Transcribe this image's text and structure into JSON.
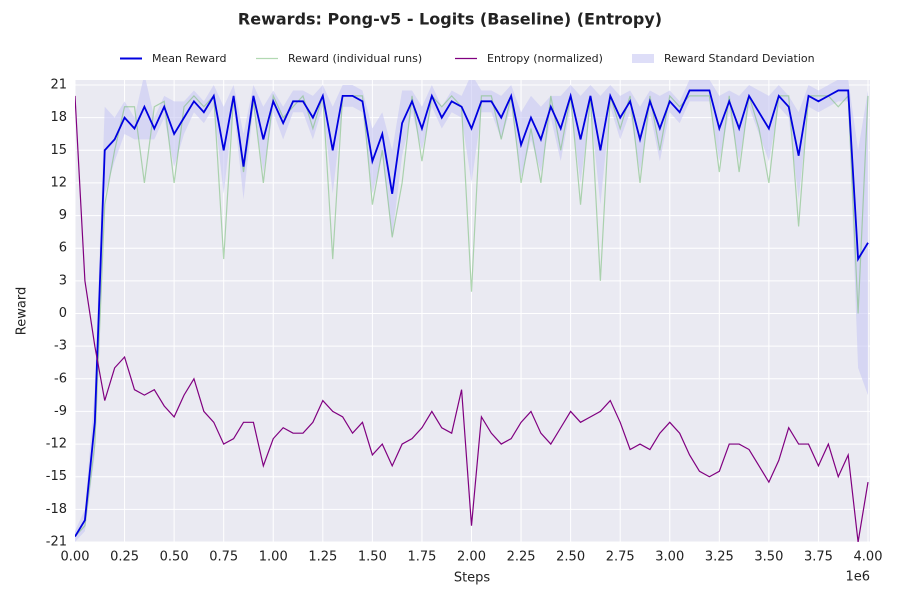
{
  "chart_data": {
    "type": "line",
    "title": "Rewards: Pong-v5 - Logits (Baseline) (Entropy)",
    "xlabel": "Steps",
    "ylabel": "Reward",
    "x_offset_label": "1e6",
    "xlim": [
      0,
      4000000
    ],
    "ylim": [
      -21,
      21
    ],
    "xticks": [
      {
        "value": 0,
        "label": "0.00"
      },
      {
        "value": 250000,
        "label": "0.25"
      },
      {
        "value": 500000,
        "label": "0.50"
      },
      {
        "value": 750000,
        "label": "0.75"
      },
      {
        "value": 1000000,
        "label": "1.00"
      },
      {
        "value": 1250000,
        "label": "1.25"
      },
      {
        "value": 1500000,
        "label": "1.50"
      },
      {
        "value": 1750000,
        "label": "1.75"
      },
      {
        "value": 2000000,
        "label": "2.00"
      },
      {
        "value": 2250000,
        "label": "2.25"
      },
      {
        "value": 2500000,
        "label": "2.50"
      },
      {
        "value": 2750000,
        "label": "2.75"
      },
      {
        "value": 3000000,
        "label": "3.00"
      },
      {
        "value": 3250000,
        "label": "3.25"
      },
      {
        "value": 3500000,
        "label": "3.50"
      },
      {
        "value": 3750000,
        "label": "3.75"
      },
      {
        "value": 4000000,
        "label": "4.00"
      }
    ],
    "yticks": [
      -21,
      -18,
      -15,
      -12,
      -9,
      -6,
      -3,
      0,
      3,
      6,
      9,
      12,
      15,
      18,
      21
    ],
    "grid": true,
    "legend": "top",
    "x": [
      0,
      50000,
      100000,
      150000,
      200000,
      250000,
      300000,
      350000,
      400000,
      450000,
      500000,
      550000,
      600000,
      650000,
      700000,
      750000,
      800000,
      850000,
      900000,
      950000,
      1000000,
      1050000,
      1100000,
      1150000,
      1200000,
      1250000,
      1300000,
      1350000,
      1400000,
      1450000,
      1500000,
      1550000,
      1600000,
      1650000,
      1700000,
      1750000,
      1800000,
      1850000,
      1900000,
      1950000,
      2000000,
      2050000,
      2100000,
      2150000,
      2200000,
      2250000,
      2300000,
      2350000,
      2400000,
      2450000,
      2500000,
      2550000,
      2600000,
      2650000,
      2700000,
      2750000,
      2800000,
      2850000,
      2900000,
      2950000,
      3000000,
      3050000,
      3100000,
      3150000,
      3200000,
      3250000,
      3300000,
      3350000,
      3400000,
      3450000,
      3500000,
      3550000,
      3600000,
      3650000,
      3700000,
      3750000,
      3800000,
      3850000,
      3900000,
      3950000,
      4000000
    ],
    "series": [
      {
        "name": "Mean Reward",
        "color": "#0000e0",
        "values": [
          -20.5,
          -19,
          -10,
          15,
          16,
          18,
          17,
          19,
          17,
          19,
          16.5,
          18,
          19.5,
          18.5,
          20,
          15,
          20,
          13.5,
          20,
          16,
          19.5,
          17.5,
          19.5,
          19.5,
          18,
          20,
          15,
          20,
          20,
          19.5,
          14,
          16.5,
          11,
          17.5,
          19.5,
          17,
          20,
          18,
          19.5,
          19,
          17,
          19.5,
          19.5,
          18,
          20,
          15.5,
          18,
          16,
          19,
          17,
          20,
          16,
          20,
          15,
          20,
          18,
          19.5,
          16,
          19.5,
          17,
          19.5,
          18.5,
          20.5,
          20.5,
          20.5,
          17,
          19.5,
          17,
          20,
          18.5,
          17,
          20,
          19,
          14.5,
          20,
          19.5,
          20,
          20.5,
          20.5,
          5,
          6.5
        ]
      },
      {
        "name": "Reward (individual runs)",
        "color": "#7fbf7f",
        "values": [
          -20.5,
          -19.5,
          -12,
          10,
          15,
          19,
          19,
          12,
          19,
          19.5,
          12,
          19,
          20,
          19,
          20,
          5,
          20,
          13,
          19.5,
          12,
          20,
          18,
          19,
          20,
          17,
          20,
          5,
          20,
          20,
          20,
          10,
          15,
          7,
          12,
          20,
          14,
          20,
          19,
          20,
          19,
          2,
          20,
          20,
          16,
          20,
          12,
          17,
          12,
          20,
          15,
          20,
          10,
          20,
          3,
          20,
          17,
          20,
          12,
          20,
          15,
          20,
          19,
          20,
          20,
          20,
          13,
          20,
          13,
          20,
          17,
          12,
          20,
          20,
          8,
          20,
          20,
          20,
          19,
          20,
          0,
          20
        ]
      },
      {
        "name": "Entropy (normalized)",
        "color": "#800080",
        "values": [
          20,
          3,
          -3,
          -8,
          -5,
          -4,
          -7,
          -7.5,
          -7,
          -8.5,
          -9.5,
          -7.5,
          -6,
          -9,
          -10,
          -12,
          -11.5,
          -10,
          -10,
          -14,
          -11.5,
          -10.5,
          -11,
          -11,
          -10,
          -8,
          -9,
          -9.5,
          -11,
          -10,
          -13,
          -12,
          -14,
          -12,
          -11.5,
          -10.5,
          -9,
          -10.5,
          -11,
          -7,
          -19.5,
          -9.5,
          -11,
          -12,
          -11.5,
          -10,
          -9,
          -11,
          -12,
          -10.5,
          -9,
          -10,
          -9.5,
          -9,
          -8,
          -10,
          -12.5,
          -12,
          -12.5,
          -11,
          -10,
          -11,
          -13,
          -14.5,
          -15,
          -14.5,
          -12,
          -12,
          -12.5,
          -14,
          -15.5,
          -13.5,
          -10.5,
          -12,
          -12,
          -14,
          -12,
          -15,
          -13,
          -21,
          -15.5
        ]
      },
      {
        "name": "Reward Standard Deviation",
        "color": "#c8c8f4",
        "band_of": 0,
        "values": [
          0.5,
          1,
          3,
          4,
          2,
          1.5,
          1,
          3,
          1,
          1,
          3,
          1.5,
          1,
          1,
          1,
          4,
          1,
          3,
          1,
          3,
          1,
          1.5,
          1,
          1,
          2,
          1,
          4,
          1,
          1,
          1,
          3,
          2,
          4,
          3,
          1,
          2,
          1,
          1,
          1,
          1,
          5,
          1,
          1,
          2,
          1,
          3,
          2,
          3,
          1,
          3,
          1,
          4,
          1,
          5,
          1,
          2,
          1,
          3,
          1,
          3,
          1,
          1,
          1,
          1,
          1,
          3,
          1,
          3,
          1,
          2,
          3,
          1,
          1,
          4,
          1,
          1,
          1,
          1,
          1,
          10,
          14
        ]
      }
    ]
  }
}
